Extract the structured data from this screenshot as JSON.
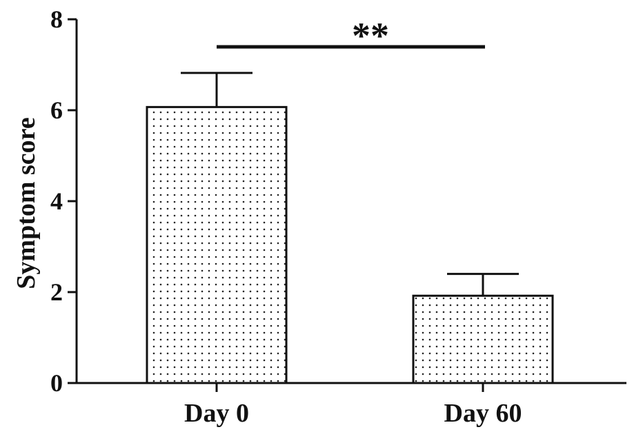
{
  "chart_data": {
    "type": "bar",
    "categories": [
      "Day 0",
      "Day 60"
    ],
    "values": [
      6.07,
      1.92
    ],
    "error_upper": [
      6.82,
      2.4
    ],
    "ylabel": "Symptom score",
    "xlabel": "",
    "ylim": [
      0,
      8
    ],
    "yticks": [
      "0",
      "2",
      "4",
      "6",
      "8"
    ],
    "significance": {
      "between": [
        "Day 0",
        "Day 60"
      ],
      "label": "**"
    },
    "bar_fill": "dotted",
    "grid": false,
    "legend": "none"
  }
}
